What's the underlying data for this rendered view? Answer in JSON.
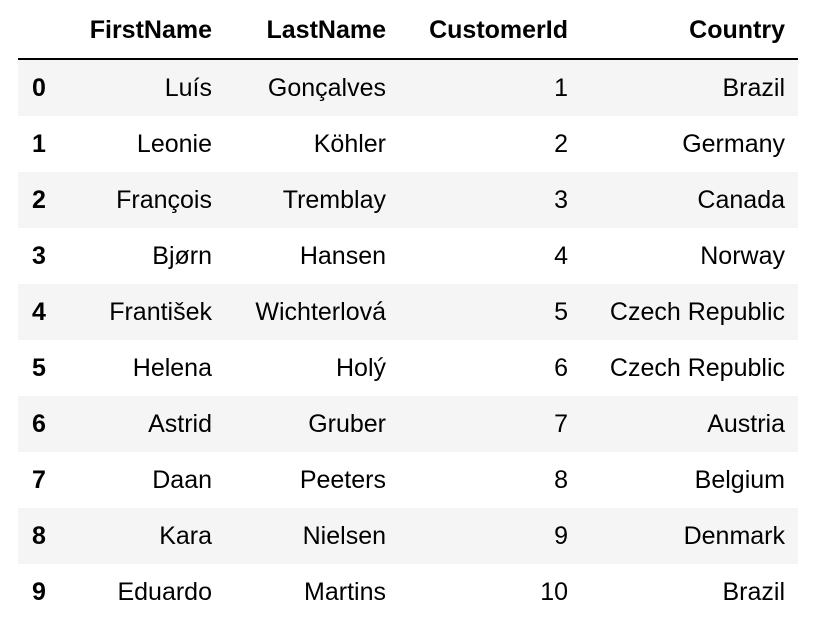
{
  "table": {
    "columns": [
      "",
      "FirstName",
      "LastName",
      "CustomerId",
      "Country"
    ],
    "rows": [
      {
        "index": "0",
        "FirstName": "Luís",
        "LastName": "Gonçalves",
        "CustomerId": "1",
        "Country": "Brazil"
      },
      {
        "index": "1",
        "FirstName": "Leonie",
        "LastName": "Köhler",
        "CustomerId": "2",
        "Country": "Germany"
      },
      {
        "index": "2",
        "FirstName": "François",
        "LastName": "Tremblay",
        "CustomerId": "3",
        "Country": "Canada"
      },
      {
        "index": "3",
        "FirstName": "Bjørn",
        "LastName": "Hansen",
        "CustomerId": "4",
        "Country": "Norway"
      },
      {
        "index": "4",
        "FirstName": "František",
        "LastName": "Wichterlová",
        "CustomerId": "5",
        "Country": "Czech Republic"
      },
      {
        "index": "5",
        "FirstName": "Helena",
        "LastName": "Holý",
        "CustomerId": "6",
        "Country": "Czech Republic"
      },
      {
        "index": "6",
        "FirstName": "Astrid",
        "LastName": "Gruber",
        "CustomerId": "7",
        "Country": "Austria"
      },
      {
        "index": "7",
        "FirstName": "Daan",
        "LastName": "Peeters",
        "CustomerId": "8",
        "Country": "Belgium"
      },
      {
        "index": "8",
        "FirstName": "Kara",
        "LastName": "Nielsen",
        "CustomerId": "9",
        "Country": "Denmark"
      },
      {
        "index": "9",
        "FirstName": "Eduardo",
        "LastName": "Martins",
        "CustomerId": "10",
        "Country": "Brazil"
      }
    ]
  },
  "colors": {
    "stripe": "#f5f5f5",
    "text": "#000000",
    "header_rule": "#000000"
  }
}
